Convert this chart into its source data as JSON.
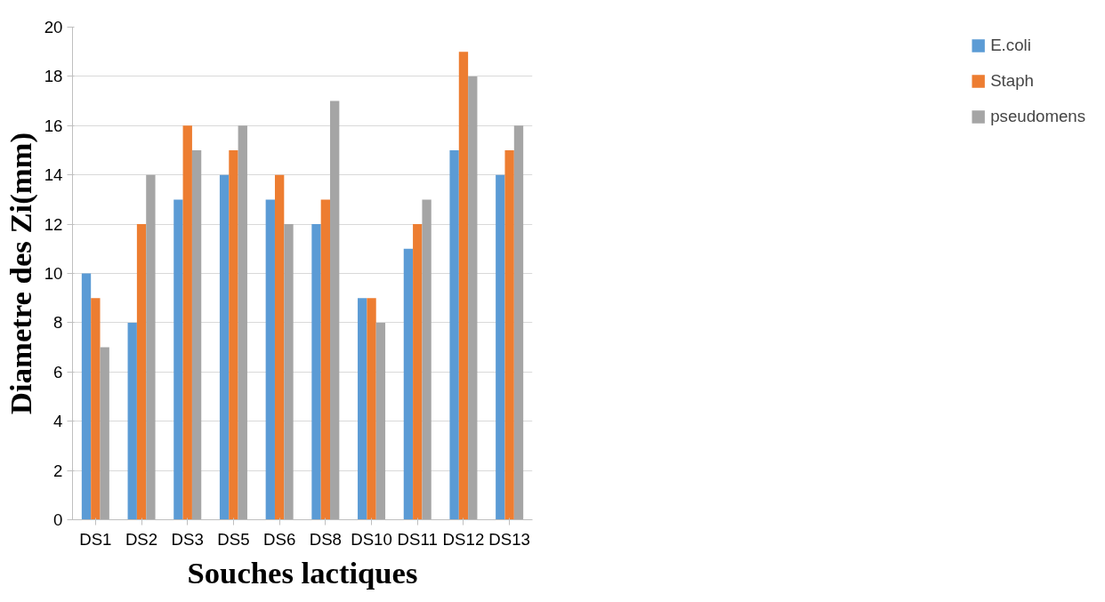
{
  "chart_data": {
    "type": "bar",
    "xlabel": "Souches lactiques",
    "ylabel": "Diametre des Zi(mm)",
    "categories": [
      "DS1",
      "DS2",
      "DS3",
      "DS5",
      "DS6",
      "DS8",
      "DS10",
      "DS11",
      "DS12",
      "DS13"
    ],
    "series": [
      {
        "name": "E.coli",
        "color": "#5b9bd5",
        "values": [
          10,
          8,
          13,
          14,
          13,
          12,
          9,
          11,
          15,
          14
        ]
      },
      {
        "name": "Staph",
        "color": "#ed7d31",
        "values": [
          9,
          12,
          16,
          15,
          14,
          13,
          9,
          12,
          19,
          15
        ]
      },
      {
        "name": "pseudomens",
        "color": "#a5a5a5",
        "values": [
          7,
          14,
          15,
          16,
          12,
          17,
          8,
          13,
          18,
          16
        ]
      }
    ],
    "ylim": [
      0,
      20
    ],
    "yticks": [
      0,
      2,
      4,
      6,
      8,
      10,
      12,
      14,
      16,
      18,
      20
    ],
    "grid": "y",
    "legend": "right"
  }
}
